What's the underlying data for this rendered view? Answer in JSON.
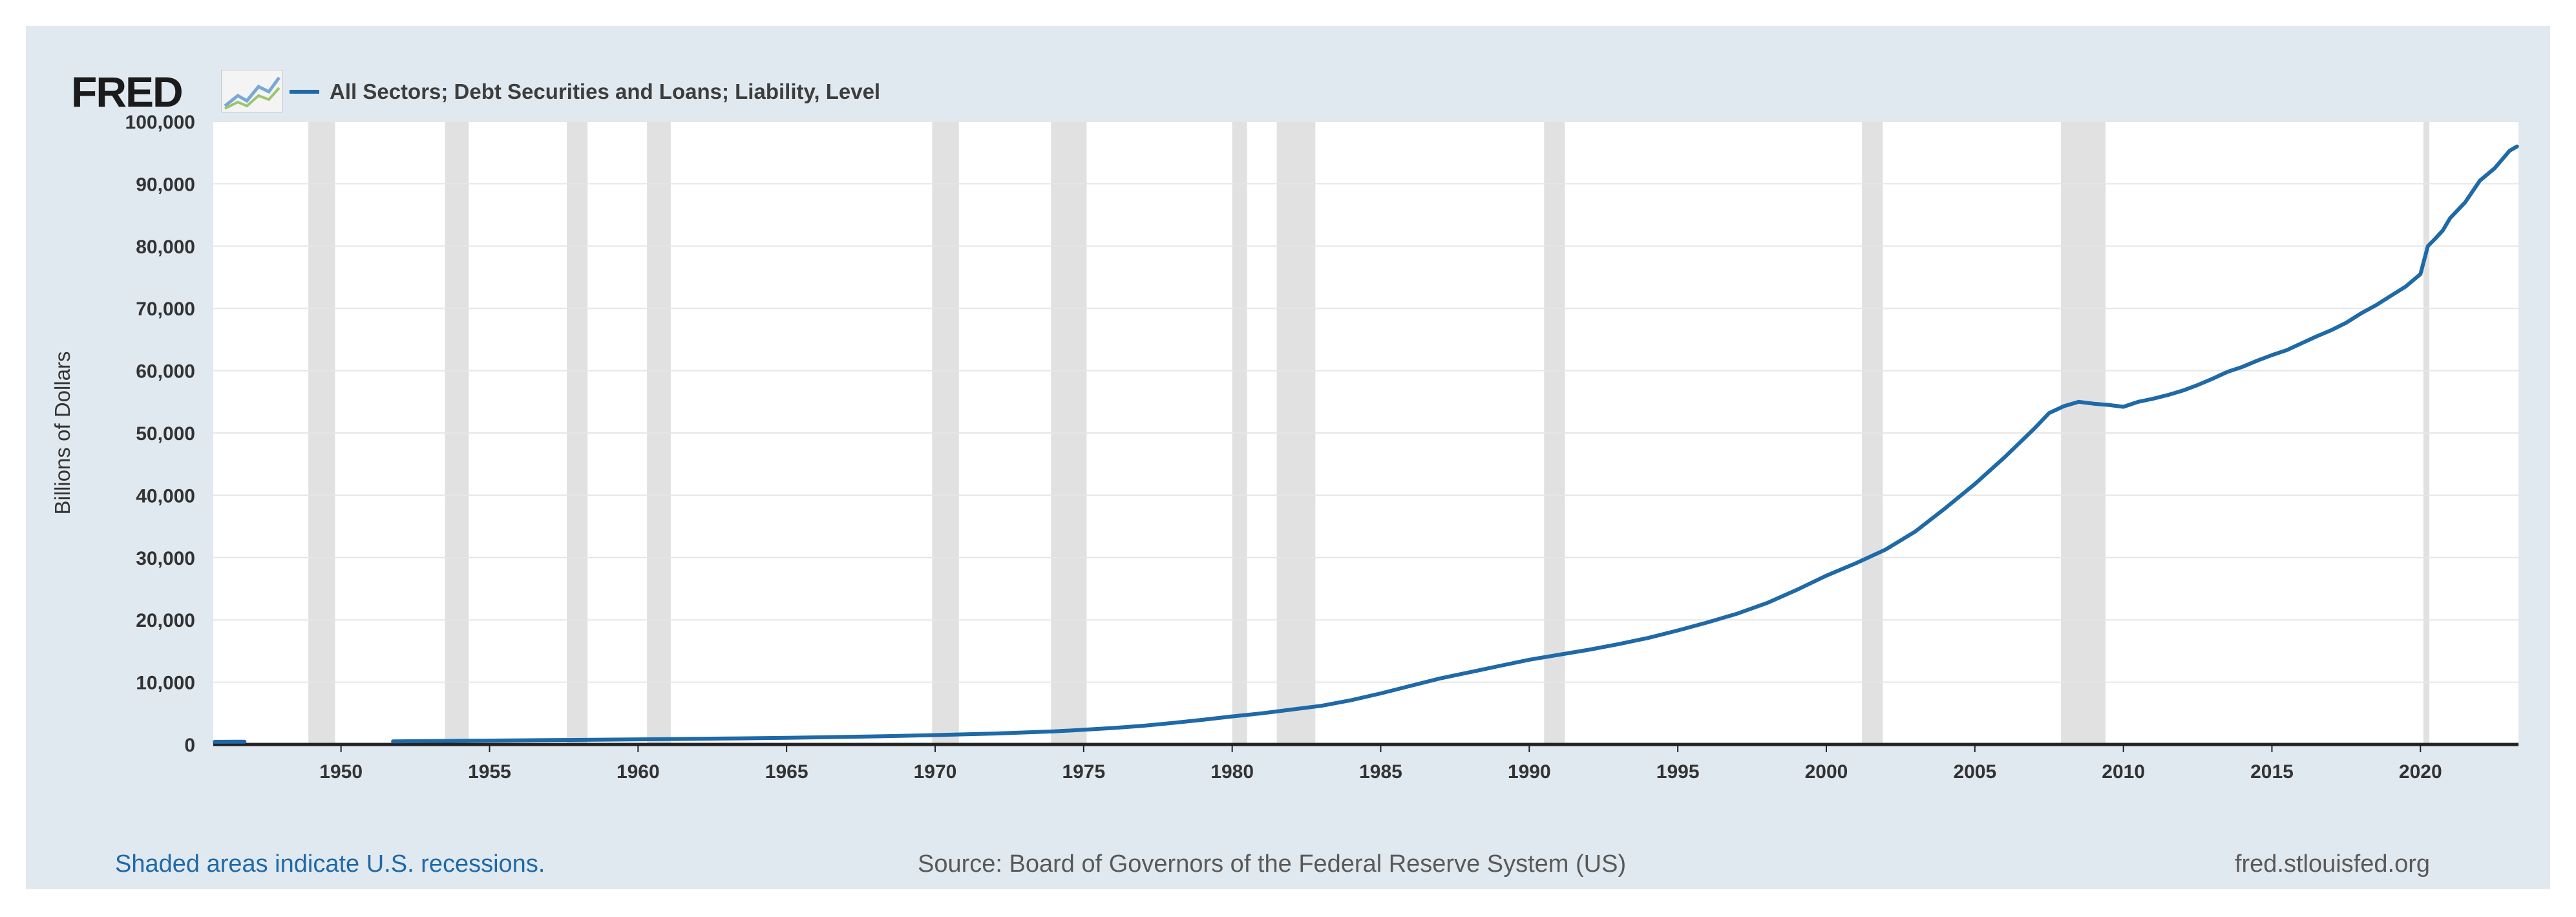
{
  "header": {
    "logo_text": "FRED",
    "legend_label": "All Sectors; Debt Securities and Loans; Liability, Level",
    "line_color": "#1f69a7"
  },
  "footer": {
    "recession_note": "Shaded areas indicate U.S. recessions.",
    "source": "Source: Board of Governors of the Federal Reserve System (US)",
    "site": "fred.stlouisfed.org"
  },
  "chart_data": {
    "type": "line",
    "title": "",
    "ylabel": "Billions of Dollars",
    "xlabel": "",
    "xlim": [
      1945.7,
      2023.3
    ],
    "ylim": [
      0,
      100000
    ],
    "y_ticks": [
      0,
      10000,
      20000,
      30000,
      40000,
      50000,
      60000,
      70000,
      80000,
      90000,
      100000
    ],
    "y_tick_labels": [
      "0",
      "10,000",
      "20,000",
      "30,000",
      "40,000",
      "50,000",
      "60,000",
      "70,000",
      "80,000",
      "90,000",
      "100,000"
    ],
    "x_ticks": [
      1950,
      1955,
      1960,
      1965,
      1970,
      1975,
      1980,
      1985,
      1990,
      1995,
      2000,
      2005,
      2010,
      2015,
      2020
    ],
    "x_tick_labels": [
      "1950",
      "1955",
      "1960",
      "1965",
      "1970",
      "1975",
      "1980",
      "1985",
      "1990",
      "1995",
      "2000",
      "2005",
      "2010",
      "2015",
      "2020"
    ],
    "grid": true,
    "recessions": [
      [
        1948.9,
        1949.8
      ],
      [
        1953.5,
        1954.3
      ],
      [
        1957.6,
        1958.3
      ],
      [
        1960.3,
        1961.1
      ],
      [
        1969.9,
        1970.8
      ],
      [
        1973.9,
        1975.1
      ],
      [
        1980.0,
        1980.5
      ],
      [
        1981.5,
        1982.8
      ],
      [
        1990.5,
        1991.2
      ],
      [
        2001.2,
        2001.9
      ],
      [
        2007.9,
        2009.4
      ],
      [
        2020.1,
        2020.3
      ]
    ],
    "series": [
      {
        "name": "All Sectors; Debt Securities and Loans; Liability, Level",
        "segments": [
          {
            "x": [
              1945.75,
              1946.0,
              1946.5,
              1946.75
            ],
            "y": [
              430,
              430,
              435,
              440
            ]
          },
          {
            "x": [
              1951.75,
              1953,
              1955,
              1957,
              1960,
              1963,
              1965,
              1968,
              1970,
              1972,
              1974,
              1975,
              1976,
              1977,
              1978,
              1979,
              1980,
              1981,
              1982,
              1983,
              1984,
              1985,
              1986,
              1987,
              1988,
              1989,
              1990,
              1991,
              1992,
              1993,
              1994,
              1995,
              1996,
              1997,
              1998,
              1999,
              2000,
              2001,
              2002,
              2003,
              2004,
              2005,
              2006,
              2007,
              2007.5,
              2008.0,
              2008.5,
              2009.0,
              2009.5,
              2010.0,
              2010.5,
              2011.0,
              2011.5,
              2012.0,
              2012.5,
              2013.0,
              2013.5,
              2014.0,
              2014.5,
              2015.0,
              2015.5,
              2016.0,
              2016.5,
              2017.0,
              2017.5,
              2018.0,
              2018.5,
              2019.0,
              2019.5,
              2020.0,
              2020.25,
              2020.5,
              2020.75,
              2021.0,
              2021.5,
              2022.0,
              2022.5,
              2023.0,
              2023.25
            ],
            "y": [
              500,
              550,
              620,
              700,
              820,
              950,
              1070,
              1300,
              1500,
              1750,
              2100,
              2350,
              2650,
              3000,
              3450,
              3950,
              4500,
              5000,
              5600,
              6200,
              7100,
              8200,
              9400,
              10600,
              11600,
              12600,
              13600,
              14400,
              15200,
              16100,
              17100,
              18300,
              19600,
              21000,
              22700,
              24800,
              27100,
              29100,
              31300,
              34200,
              37900,
              41800,
              46100,
              50700,
              53200,
              54300,
              55000,
              54700,
              54500,
              54200,
              55000,
              55500,
              56100,
              56800,
              57700,
              58700,
              59800,
              60600,
              61600,
              62500,
              63300,
              64400,
              65500,
              66500,
              67700,
              69200,
              70500,
              72000,
              73500,
              75500,
              80000,
              81200,
              82500,
              84500,
              87000,
              90500,
              92500,
              95300,
              96000
            ]
          }
        ]
      }
    ]
  }
}
